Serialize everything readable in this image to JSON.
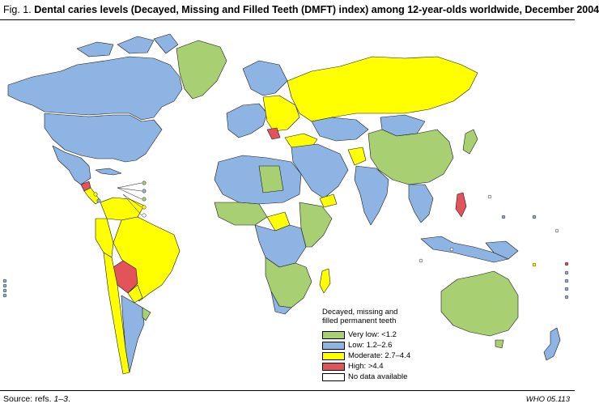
{
  "title": {
    "prefix": "Fig. 1.",
    "text": "Dental caries levels (Decayed, Missing and Filled Teeth (DMFT) index) among 12-year-olds worldwide, December 2004"
  },
  "legend": {
    "title_lines": [
      "Decayed, missing and",
      "filled permanent teeth"
    ],
    "items": [
      {
        "label": "Very low: <1.2",
        "color": "#a8cf72"
      },
      {
        "label": "Low: 1.2–2.6",
        "color": "#8db4e2"
      },
      {
        "label": "Moderate: 2.7–4.4",
        "color": "#ffff00"
      },
      {
        "label": "High: >4.4",
        "color": "#e3545a"
      },
      {
        "label": "No data available",
        "color": "#ffffff"
      }
    ]
  },
  "footer": {
    "source_prefix": "Source: refs. ",
    "source_refs": "1–3",
    "source_suffix": ".",
    "code": "WHO 05.113"
  },
  "colors": {
    "very_low": "#a8cf72",
    "low": "#8db4e2",
    "moderate": "#ffff00",
    "high": "#e3545a",
    "no_data": "#ffffff",
    "border": "#1a1a1a"
  }
}
